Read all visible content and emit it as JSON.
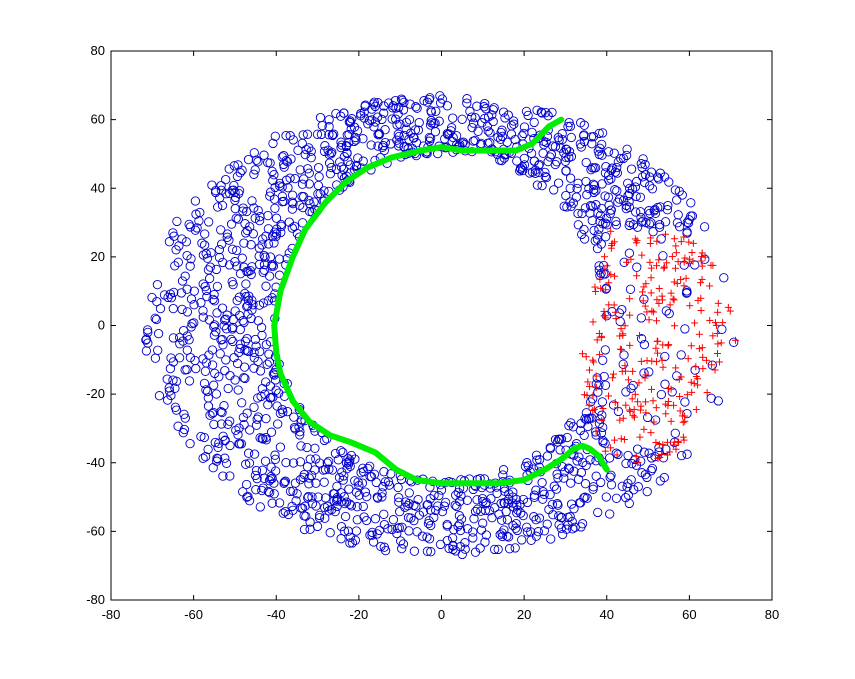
{
  "chart_data": {
    "type": "scatter",
    "title": "",
    "xlabel": "",
    "ylabel": "",
    "xlim": [
      -80,
      80
    ],
    "ylim": [
      -80,
      80
    ],
    "x_ticks": [
      -80,
      -60,
      -40,
      -20,
      0,
      20,
      40,
      60,
      80
    ],
    "y_ticks": [
      -80,
      -60,
      -40,
      -20,
      0,
      20,
      40,
      60,
      80
    ],
    "x_tick_labels": [
      "-80",
      "-60",
      "-40",
      "-20",
      "0",
      "20",
      "40",
      "60",
      "80"
    ],
    "y_tick_labels": [
      "-80",
      "-60",
      "-40",
      "-20",
      "0",
      "20",
      "40",
      "60",
      "80"
    ],
    "grid": false,
    "legend": false,
    "series": [
      {
        "marker": "circle",
        "color": "#0000cc",
        "description_shape": "annulus",
        "ring": {
          "center": [
            0,
            0
          ],
          "inner_boundary": [
            [
              -38,
              0
            ],
            [
              -35,
              18
            ],
            [
              -26,
              33
            ],
            [
              -12,
              44
            ],
            [
              0,
              48
            ],
            [
              14,
              46
            ],
            [
              25,
              42
            ],
            [
              33,
              34
            ],
            [
              38,
              22
            ]
          ],
          "outer_boundary": [
            [
              -73,
              0
            ],
            [
              -70,
              22
            ],
            [
              -58,
              42
            ],
            [
              -40,
              56
            ],
            [
              -20,
              66
            ],
            [
              0,
              68
            ],
            [
              20,
              66
            ],
            [
              38,
              58
            ],
            [
              55,
              46
            ],
            [
              65,
              34
            ],
            [
              70,
              22
            ]
          ],
          "bottom_inner": [
            [
              -38,
              -5
            ],
            [
              -34,
              -22
            ],
            [
              -24,
              -36
            ],
            [
              -10,
              -43
            ],
            [
              5,
              -44
            ],
            [
              20,
              -41
            ],
            [
              32,
              -36
            ],
            [
              38,
              -30
            ]
          ],
          "bottom_outer": [
            [
              -73,
              -5
            ],
            [
              -68,
              -26
            ],
            [
              -56,
              -46
            ],
            [
              -38,
              -58
            ],
            [
              -18,
              -66
            ],
            [
              0,
              -68
            ],
            [
              18,
              -66
            ],
            [
              35,
              -58
            ],
            [
              50,
              -48
            ],
            [
              62,
              -36
            ]
          ]
        },
        "approx_count": 1600
      },
      {
        "marker": "plus",
        "color": "#ff0000",
        "region_x": [
          34,
          74
        ],
        "region_y": [
          -40,
          28
        ],
        "approx_count": 260
      },
      {
        "marker": "line",
        "color": "#00ee00",
        "x": [
          29,
          26,
          22,
          18,
          12,
          5,
          0,
          -5,
          -12,
          -18,
          -23,
          -28,
          -33,
          -36,
          -39,
          -40.5,
          -40,
          -39,
          -36,
          -32,
          -27,
          -22,
          -16,
          -11,
          -6,
          0,
          7,
          14,
          20,
          25,
          29,
          32,
          34,
          36,
          37,
          38,
          39,
          40
        ],
        "y": [
          60,
          58,
          53,
          51,
          51,
          51,
          52,
          51,
          49,
          46,
          42,
          36,
          28,
          20,
          10,
          0,
          -8,
          -14,
          -22,
          -28,
          -32,
          -34,
          -37,
          -42,
          -45,
          -46,
          -46,
          -46,
          -45,
          -42,
          -39,
          -36,
          -35,
          -36,
          -37,
          -38,
          -40,
          -42
        ]
      }
    ]
  }
}
